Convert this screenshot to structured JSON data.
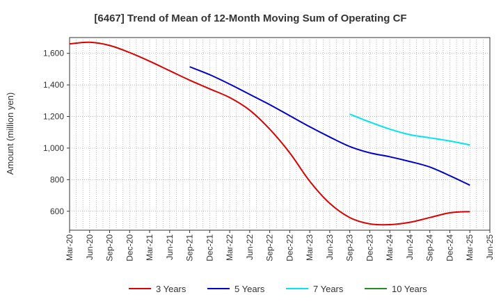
{
  "chart_data": {
    "type": "line",
    "title": "[6467]  Trend of Mean of 12-Month Moving Sum of Operating CF",
    "xlabel": "",
    "ylabel": "Amount (million yen)",
    "ylim": [
      480,
      1700
    ],
    "yticks": [
      600,
      800,
      1000,
      1200,
      1400,
      1600
    ],
    "ytick_labels": [
      "600",
      "800",
      "1,000",
      "1,200",
      "1,400",
      "1,600"
    ],
    "categories": [
      "Mar-20",
      "Jun-20",
      "Sep-20",
      "Dec-20",
      "Mar-21",
      "Jun-21",
      "Sep-21",
      "Dec-21",
      "Mar-22",
      "Jun-22",
      "Sep-22",
      "Dec-22",
      "Mar-23",
      "Jun-23",
      "Sep-23",
      "Dec-23",
      "Mar-24",
      "Jun-24",
      "Sep-24",
      "Dec-24",
      "Mar-25",
      "Jun-25"
    ],
    "grid": true,
    "legend_position": "bottom",
    "series": [
      {
        "name": "3 Years",
        "color": "#dd0000",
        "values": [
          1660,
          1670,
          1650,
          1605,
          1550,
          1490,
          1430,
          1375,
          1320,
          1240,
          1120,
          970,
          790,
          650,
          560,
          520,
          515,
          530,
          560,
          590,
          598,
          null
        ]
      },
      {
        "name": "5 Years",
        "color": "#0000cc",
        "values": [
          null,
          null,
          null,
          null,
          null,
          null,
          1515,
          1465,
          1405,
          1340,
          1275,
          1205,
          1135,
          1070,
          1010,
          970,
          945,
          915,
          880,
          825,
          765,
          null
        ]
      },
      {
        "name": "7 Years",
        "color": "#00e5ee",
        "values": [
          null,
          null,
          null,
          null,
          null,
          null,
          null,
          null,
          null,
          null,
          null,
          null,
          null,
          null,
          1215,
          1165,
          1120,
          1085,
          1065,
          1045,
          1020,
          null
        ]
      },
      {
        "name": "10 Years",
        "color": "#228b22",
        "values": [
          null,
          null,
          null,
          null,
          null,
          null,
          null,
          null,
          null,
          null,
          null,
          null,
          null,
          null,
          null,
          null,
          null,
          null,
          null,
          null,
          null,
          null
        ]
      }
    ]
  }
}
